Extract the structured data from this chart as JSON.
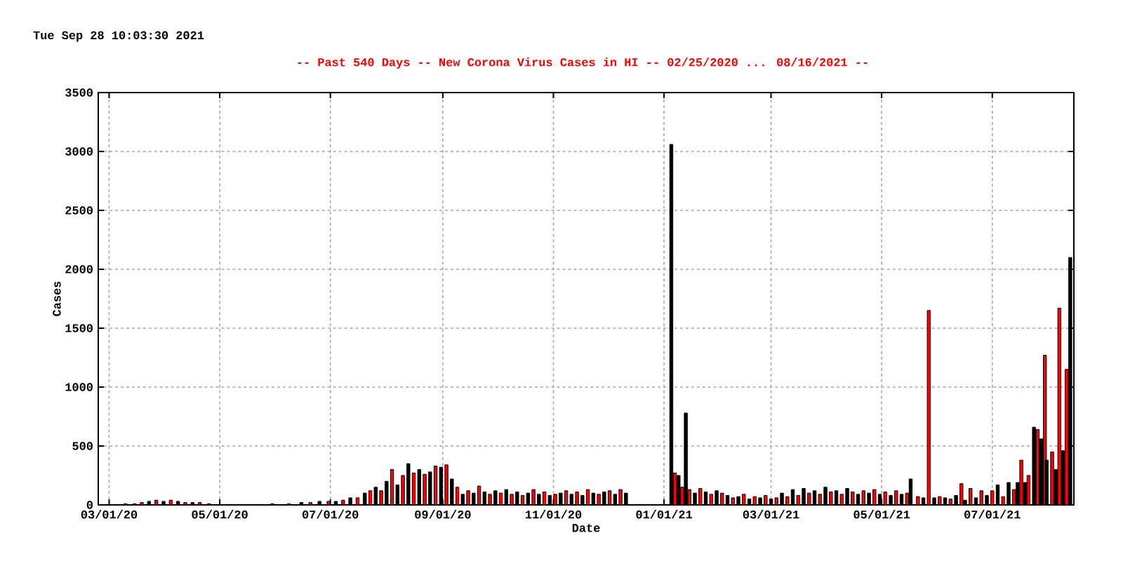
{
  "chart_data": {
    "type": "bar",
    "title": "--  Past 540 Days  --  New Corona Virus Cases in HI  -- 02/25/2020 ... 08/16/2021  --",
    "annotations": [
      "Tue Sep 28 10:03:30 2021"
    ],
    "xlabel": "Date",
    "ylabel": "Cases",
    "x": [
      "2020-03-05",
      "2020-03-10",
      "2020-03-15",
      "2020-03-19",
      "2020-03-23",
      "2020-03-27",
      "2020-03-31",
      "2020-04-04",
      "2020-04-08",
      "2020-04-12",
      "2020-04-16",
      "2020-04-20",
      "2020-04-25",
      "2020-05-01",
      "2020-05-10",
      "2020-05-20",
      "2020-05-30",
      "2020-06-08",
      "2020-06-15",
      "2020-06-20",
      "2020-06-25",
      "2020-06-30",
      "2020-07-04",
      "2020-07-08",
      "2020-07-12",
      "2020-07-16",
      "2020-07-20",
      "2020-07-23",
      "2020-07-26",
      "2020-07-29",
      "2020-08-01",
      "2020-08-04",
      "2020-08-07",
      "2020-08-10",
      "2020-08-13",
      "2020-08-16",
      "2020-08-19",
      "2020-08-22",
      "2020-08-25",
      "2020-08-28",
      "2020-08-31",
      "2020-09-03",
      "2020-09-06",
      "2020-09-09",
      "2020-09-12",
      "2020-09-15",
      "2020-09-18",
      "2020-09-21",
      "2020-09-24",
      "2020-09-27",
      "2020-09-30",
      "2020-10-03",
      "2020-10-06",
      "2020-10-09",
      "2020-10-12",
      "2020-10-15",
      "2020-10-18",
      "2020-10-21",
      "2020-10-24",
      "2020-10-27",
      "2020-10-30",
      "2020-11-02",
      "2020-11-05",
      "2020-11-08",
      "2020-11-11",
      "2020-11-14",
      "2020-11-17",
      "2020-11-20",
      "2020-11-23",
      "2020-11-26",
      "2020-11-29",
      "2020-12-02",
      "2020-12-05",
      "2020-12-08",
      "2020-12-11",
      "2020-12-31",
      "2021-01-05",
      "2021-01-07",
      "2021-01-09",
      "2021-01-11",
      "2021-01-13",
      "2021-01-15",
      "2021-01-18",
      "2021-01-21",
      "2021-01-24",
      "2021-01-27",
      "2021-01-30",
      "2021-02-02",
      "2021-02-05",
      "2021-02-08",
      "2021-02-11",
      "2021-02-14",
      "2021-02-17",
      "2021-02-20",
      "2021-02-23",
      "2021-02-26",
      "2021-03-01",
      "2021-03-04",
      "2021-03-07",
      "2021-03-10",
      "2021-03-13",
      "2021-03-16",
      "2021-03-19",
      "2021-03-22",
      "2021-03-25",
      "2021-03-28",
      "2021-03-31",
      "2021-04-03",
      "2021-04-06",
      "2021-04-09",
      "2021-04-12",
      "2021-04-15",
      "2021-04-18",
      "2021-04-21",
      "2021-04-24",
      "2021-04-27",
      "2021-04-30",
      "2021-05-03",
      "2021-05-06",
      "2021-05-09",
      "2021-05-12",
      "2021-05-15",
      "2021-05-17",
      "2021-05-21",
      "2021-05-24",
      "2021-05-27",
      "2021-05-30",
      "2021-06-02",
      "2021-06-05",
      "2021-06-08",
      "2021-06-11",
      "2021-06-14",
      "2021-06-16",
      "2021-06-19",
      "2021-06-22",
      "2021-06-25",
      "2021-06-28",
      "2021-07-01",
      "2021-07-04",
      "2021-07-07",
      "2021-07-10",
      "2021-07-13",
      "2021-07-15",
      "2021-07-17",
      "2021-07-19",
      "2021-07-21",
      "2021-07-24",
      "2021-07-26",
      "2021-07-28",
      "2021-07-30",
      "2021-07-31",
      "2021-08-03",
      "2021-08-05",
      "2021-08-07",
      "2021-08-09",
      "2021-08-11",
      "2021-08-13"
    ],
    "values": [
      0,
      10,
      10,
      20,
      30,
      40,
      30,
      40,
      30,
      20,
      20,
      20,
      10,
      0,
      0,
      0,
      10,
      10,
      20,
      20,
      30,
      30,
      30,
      40,
      60,
      60,
      100,
      120,
      150,
      120,
      200,
      300,
      170,
      250,
      350,
      270,
      300,
      260,
      280,
      330,
      320,
      340,
      220,
      150,
      90,
      120,
      100,
      160,
      110,
      90,
      120,
      100,
      130,
      90,
      110,
      80,
      100,
      130,
      90,
      110,
      80,
      90,
      100,
      120,
      90,
      110,
      80,
      130,
      100,
      90,
      110,
      120,
      90,
      130,
      100,
      null,
      3060,
      270,
      250,
      150,
      780,
      130,
      100,
      140,
      110,
      90,
      120,
      100,
      80,
      60,
      70,
      90,
      50,
      70,
      60,
      80,
      50,
      60,
      100,
      70,
      130,
      80,
      140,
      100,
      120,
      90,
      150,
      110,
      120,
      90,
      140,
      110,
      90,
      120,
      100,
      130,
      90,
      110,
      80,
      120,
      90,
      100,
      220,
      70,
      60,
      1650,
      60,
      70,
      60,
      50,
      80,
      180,
      40,
      140,
      60,
      120,
      80,
      120,
      170,
      70,
      190,
      130,
      190,
      380,
      190,
      250,
      660,
      640,
      560,
      1270,
      380,
      450,
      300,
      1670,
      460,
      1150,
      2100
    ],
    "colors": [
      "#000000",
      "#ff0000",
      "#000000",
      "#ff0000",
      "#000000",
      "#ff0000",
      "#000000",
      "#ff0000",
      "#000000",
      "#ff0000",
      "#000000",
      "#ff0000",
      "#000000",
      "#ff0000",
      "#000000",
      "#ff0000",
      "#000000",
      "#ff0000",
      "#000000",
      "#ff0000",
      "#000000",
      "#ff0000",
      "#000000",
      "#ff0000",
      "#000000",
      "#ff0000",
      "#000000",
      "#ff0000",
      "#000000",
      "#ff0000",
      "#000000",
      "#ff0000",
      "#000000",
      "#ff0000",
      "#000000",
      "#ff0000",
      "#000000",
      "#ff0000",
      "#000000",
      "#ff0000",
      "#000000",
      "#ff0000",
      "#000000",
      "#ff0000",
      "#000000",
      "#ff0000",
      "#000000",
      "#ff0000",
      "#000000",
      "#ff0000",
      "#000000",
      "#ff0000",
      "#000000",
      "#ff0000",
      "#000000",
      "#ff0000",
      "#000000",
      "#ff0000",
      "#000000",
      "#ff0000",
      "#000000",
      "#ff0000",
      "#000000",
      "#ff0000",
      "#000000",
      "#ff0000",
      "#000000",
      "#ff0000",
      "#000000",
      "#ff0000",
      "#000000",
      "#ff0000",
      "#000000",
      "#ff0000",
      "#000000",
      "#ff0000",
      "#000000",
      "#ff0000",
      "#000000",
      "#ff0000",
      "#000000",
      "#ff0000",
      "#000000",
      "#ff0000",
      "#000000",
      "#ff0000",
      "#000000",
      "#ff0000",
      "#000000",
      "#ff0000",
      "#000000",
      "#ff0000",
      "#000000",
      "#ff0000",
      "#000000",
      "#ff0000",
      "#000000",
      "#ff0000",
      "#000000",
      "#ff0000",
      "#000000",
      "#ff0000",
      "#000000",
      "#ff0000",
      "#000000",
      "#ff0000",
      "#000000",
      "#ff0000",
      "#000000",
      "#ff0000",
      "#000000",
      "#ff0000",
      "#000000",
      "#ff0000",
      "#000000",
      "#ff0000",
      "#000000",
      "#ff0000",
      "#000000",
      "#ff0000",
      "#000000",
      "#ff0000",
      "#000000",
      "#ff0000",
      "#000000",
      "#ff0000",
      "#000000",
      "#ff0000",
      "#000000",
      "#ff0000",
      "#000000",
      "#ff0000",
      "#000000",
      "#ff0000",
      "#000000",
      "#ff0000",
      "#000000",
      "#ff0000",
      "#000000",
      "#ff0000",
      "#000000",
      "#ff0000",
      "#000000",
      "#ff0000",
      "#000000",
      "#ff0000",
      "#000000",
      "#ff0000",
      "#000000",
      "#ff0000",
      "#000000",
      "#ff0000",
      "#000000",
      "#ff0000",
      "#000000",
      "#ff0000",
      "#000000"
    ],
    "xlim": [
      "2020-02-24",
      "2021-08-15"
    ],
    "xticks": [
      {
        "value": "2020-03-01",
        "label": "03/01/20"
      },
      {
        "value": "2020-05-01",
        "label": "05/01/20"
      },
      {
        "value": "2020-07-01",
        "label": "07/01/20"
      },
      {
        "value": "2020-09-01",
        "label": "09/01/20"
      },
      {
        "value": "2020-11-01",
        "label": "11/01/20"
      },
      {
        "value": "2021-01-01",
        "label": "01/01/21"
      },
      {
        "value": "2021-03-01",
        "label": "03/01/21"
      },
      {
        "value": "2021-05-01",
        "label": "05/01/21"
      },
      {
        "value": "2021-07-01",
        "label": "07/01/21"
      }
    ],
    "ylim": [
      0,
      3500
    ],
    "yticks": [
      0,
      500,
      1000,
      1500,
      2000,
      2500,
      3000,
      3500
    ],
    "grid": true
  }
}
